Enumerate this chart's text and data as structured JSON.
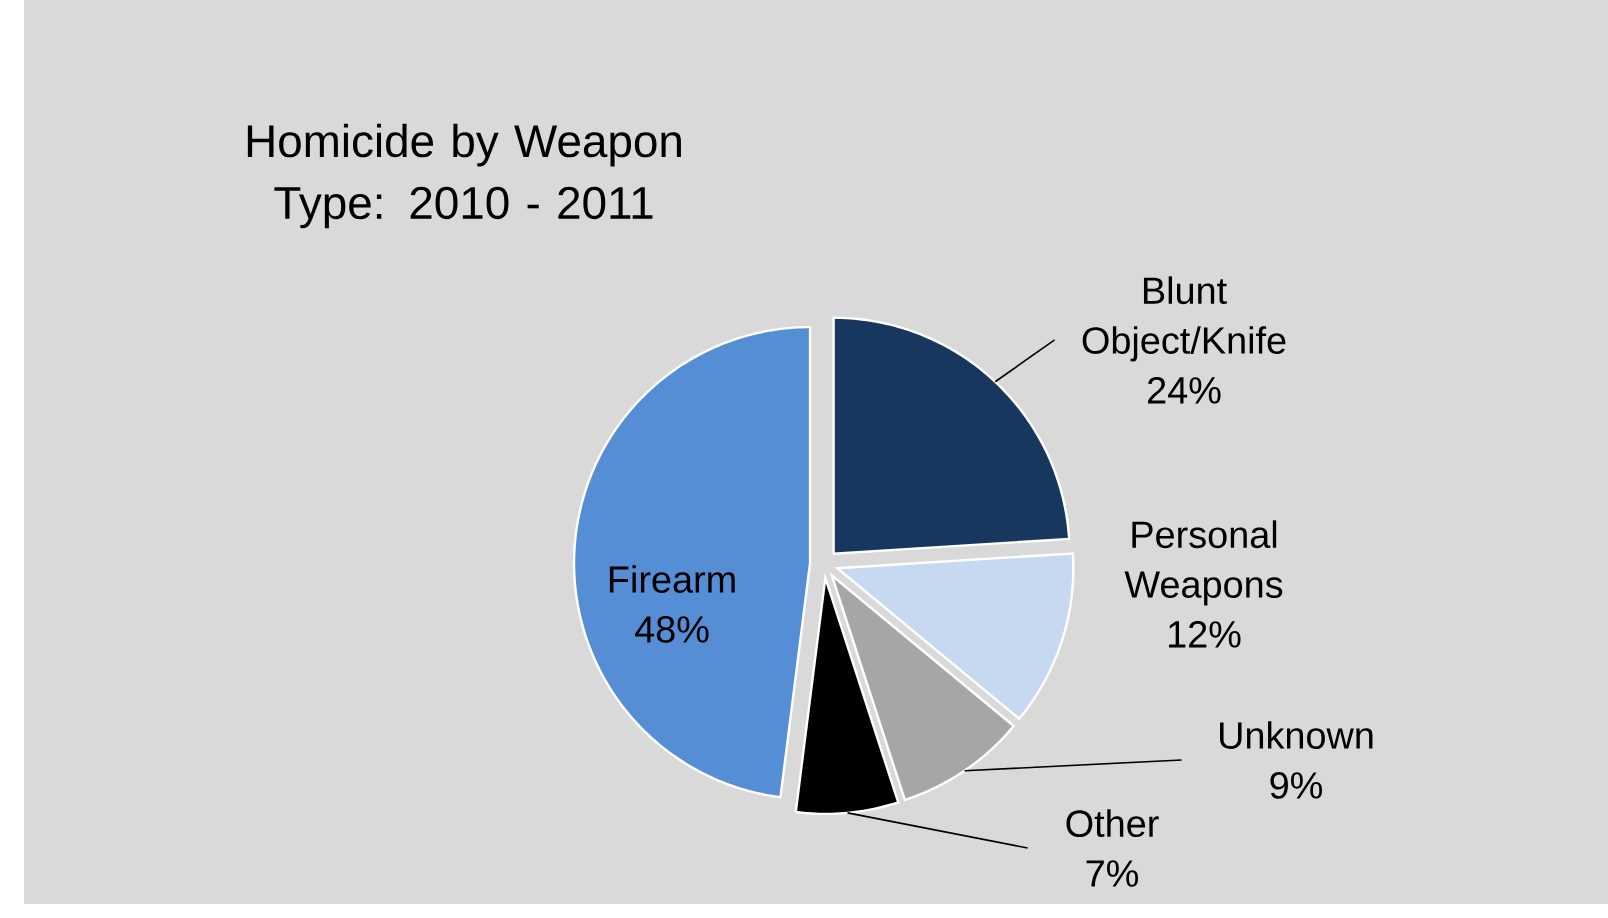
{
  "chart_data": {
    "type": "pie",
    "title": "Homicide by Weapon Type: 2010 - 2011",
    "categories": [
      "Blunt Object/Knife",
      "Personal Weapons",
      "Unknown",
      "Other",
      "Firearm"
    ],
    "values": [
      24,
      12,
      9,
      7,
      48
    ],
    "colors": [
      "#17375e",
      "#c6d9f1",
      "#a6a6a6",
      "#000000",
      "#558ed5"
    ],
    "value_labels": [
      "24%",
      "12%",
      "9%",
      "7%",
      "48%"
    ]
  }
}
